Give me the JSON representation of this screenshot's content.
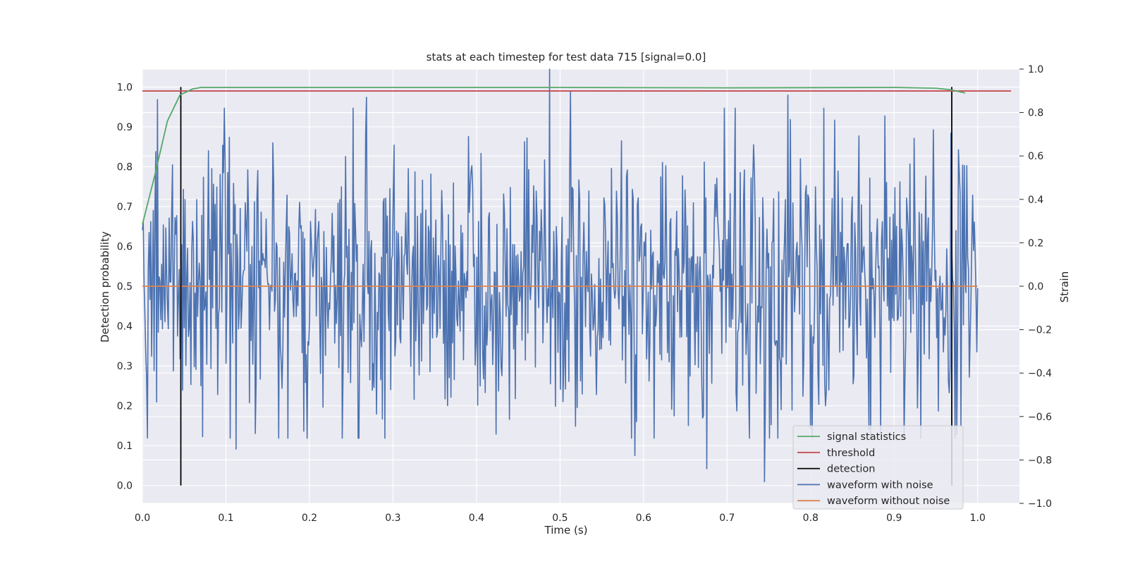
{
  "chart_data": {
    "type": "line",
    "title": "stats at each timestep for test data 715 [signal=0.0]",
    "xlabel": "Time (s)",
    "ylabel": "Detection probability",
    "y2label": "Strain",
    "xlim": [
      0.0,
      1.05
    ],
    "ylim": [
      -0.045,
      1.045
    ],
    "y2lim": [
      -1.0,
      1.0
    ],
    "xticks": [
      "0.0",
      "0.1",
      "0.2",
      "0.3",
      "0.4",
      "0.5",
      "0.6",
      "0.7",
      "0.8",
      "0.9",
      "1.0"
    ],
    "yticks": [
      "0.0",
      "0.1",
      "0.2",
      "0.3",
      "0.4",
      "0.5",
      "0.6",
      "0.7",
      "0.8",
      "0.9",
      "1.0"
    ],
    "y2ticks": [
      "−1.0",
      "−0.8",
      "−0.6",
      "−0.4",
      "−0.2",
      "0.0",
      "0.2",
      "0.4",
      "0.6",
      "0.8",
      "1.0"
    ],
    "grid": true,
    "legend_position": "lower-right",
    "colors": {
      "background": "#eaeaf2",
      "grid": "#ffffff",
      "signal_statistics": "#55a868",
      "threshold": "#c44e52",
      "detection": "#000000",
      "waveform_with_noise": "#4c72b0",
      "waveform_without_noise": "#dd8452"
    },
    "series": [
      {
        "name": "signal statistics",
        "axis": "left",
        "x": [
          0.0,
          0.015,
          0.03,
          0.045,
          0.06,
          0.07,
          0.1,
          0.3,
          0.5,
          0.7,
          0.9,
          0.95,
          0.968,
          0.985
        ],
        "y": [
          0.655,
          0.78,
          0.915,
          0.98,
          0.995,
          0.999,
          0.999,
          0.999,
          0.999,
          0.998,
          0.999,
          0.997,
          0.993,
          0.985
        ]
      },
      {
        "name": "threshold",
        "axis": "left",
        "x": [
          0.0,
          1.04
        ],
        "y": [
          0.99,
          0.99
        ]
      },
      {
        "name": "detection",
        "axis": "left",
        "x": [
          0.046,
          0.969
        ],
        "y_range": [
          0.0,
          1.0
        ]
      },
      {
        "name": "waveform with noise",
        "axis": "right",
        "x_range": [
          0.0,
          1.0
        ],
        "n_points": 1000,
        "y_peaks": [
          {
            "x": 0.018,
            "y": 0.86
          },
          {
            "x": 0.268,
            "y": 0.87
          },
          {
            "x": 0.487,
            "y": 1.0
          },
          {
            "x": 0.513,
            "y": 0.9
          },
          {
            "x": 0.773,
            "y": 0.88
          },
          {
            "x": 0.112,
            "y": -0.75
          },
          {
            "x": 0.29,
            "y": -0.7
          },
          {
            "x": 0.59,
            "y": -0.78
          },
          {
            "x": 0.676,
            "y": -0.84
          },
          {
            "x": 0.745,
            "y": -0.9
          }
        ],
        "y_std": 0.33
      },
      {
        "name": "waveform without noise",
        "axis": "right",
        "x": [
          0.0,
          1.0
        ],
        "y": [
          0.0,
          0.0
        ]
      }
    ]
  }
}
